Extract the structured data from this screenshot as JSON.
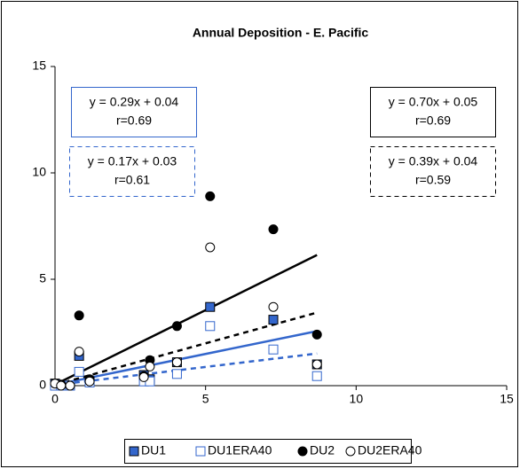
{
  "chart_data": {
    "type": "scatter",
    "title": "Annual Deposition - E. Pacific",
    "x": [
      0,
      0.2,
      0.5,
      0.8,
      1.15,
      2.95,
      3.15,
      4.05,
      5.15,
      7.25,
      8.7
    ],
    "series": [
      {
        "name": "DU1",
        "color": "#3366cc",
        "marker": "filled-square",
        "values": [
          0.1,
          0,
          0,
          1.4,
          0.2,
          0.5,
          0.3,
          1.1,
          3.7,
          3.1,
          1.0
        ]
      },
      {
        "name": "DU1ERA40",
        "color": "#3366cc",
        "marker": "open-square",
        "values": [
          0,
          0,
          0,
          0.65,
          0.15,
          0.2,
          0.2,
          0.55,
          2.8,
          1.7,
          0.45
        ]
      },
      {
        "name": "DU2",
        "color": "#000000",
        "marker": "filled-circle",
        "values": [
          0.1,
          0.05,
          0,
          3.3,
          0.3,
          0.45,
          1.2,
          2.8,
          8.9,
          7.35,
          2.4
        ]
      },
      {
        "name": "DU2ERA40",
        "color": "#000000",
        "marker": "open-circle",
        "values": [
          0.1,
          0,
          0,
          1.6,
          0.2,
          0.4,
          0.9,
          1.1,
          6.5,
          3.7,
          1.0
        ]
      }
    ],
    "fits": [
      {
        "series": 0,
        "equation": "y = 0.29x + 0.04",
        "r": "r=0.69",
        "slope": 0.29,
        "intercept": 0.04,
        "dashed": false
      },
      {
        "series": 1,
        "equation": "y = 0.17x + 0.03",
        "r": "r=0.61",
        "slope": 0.17,
        "intercept": 0.03,
        "dashed": true
      },
      {
        "series": 2,
        "equation": "y = 0.70x + 0.05",
        "r": "r=0.69",
        "slope": 0.7,
        "intercept": 0.05,
        "dashed": false
      },
      {
        "series": 3,
        "equation": "y = 0.39x + 0.04",
        "r": "r=0.59",
        "slope": 0.39,
        "intercept": 0.04,
        "dashed": true
      }
    ],
    "xlim": [
      0,
      15
    ],
    "xticks": [
      0,
      5,
      10,
      15
    ],
    "ylim": [
      0,
      15
    ],
    "yticks": [
      0,
      5,
      10,
      15
    ],
    "grid": false
  }
}
